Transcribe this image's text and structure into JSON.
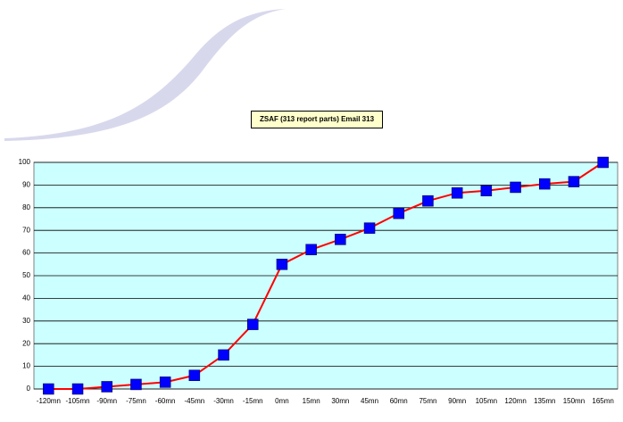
{
  "chart_data": {
    "type": "line",
    "title": "ZSAF (313 report parts) Email 313",
    "categories": [
      "-120mn",
      "-105mn",
      "-90mn",
      "-75mn",
      "-60mn",
      "-45mn",
      "-30mn",
      "-15mn",
      "0mn",
      "15mn",
      "30mn",
      "45mn",
      "60mn",
      "75mn",
      "90mn",
      "105mn",
      "120mn",
      "135mn",
      "150mn",
      "165mn"
    ],
    "series": [
      {
        "color": "#ff0000",
        "marker_color": "#0000ff",
        "values": [
          0,
          0,
          1,
          2,
          3,
          6,
          15,
          28.5,
          55,
          61.5,
          66,
          71,
          77.5,
          83,
          86.5,
          87.5,
          89,
          90.5,
          91.5,
          100
        ]
      }
    ],
    "ylim": [
      0,
      100
    ],
    "yticks": [
      0,
      10,
      20,
      30,
      40,
      50,
      60,
      70,
      80,
      90,
      100
    ],
    "grid": true,
    "plot_background": "#ccffff"
  }
}
